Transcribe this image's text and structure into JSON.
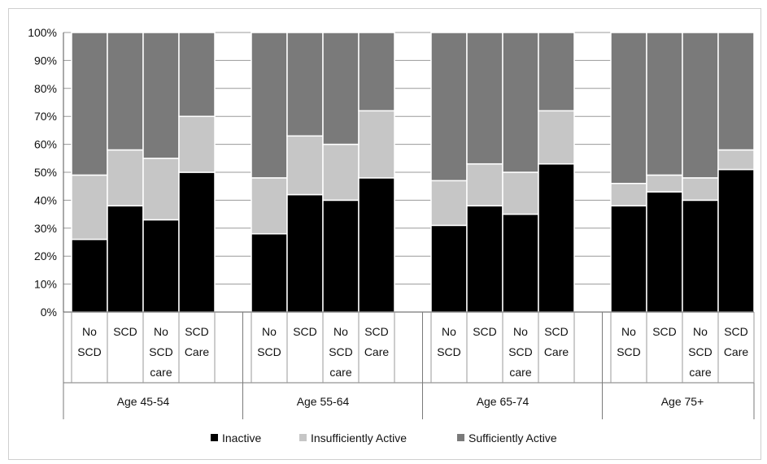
{
  "chart_data": {
    "type": "bar",
    "stacked": true,
    "title": "",
    "xlabel": "",
    "ylabel": "",
    "ylim": [
      0,
      100
    ],
    "y_ticks": [
      "0%",
      "10%",
      "20%",
      "30%",
      "40%",
      "50%",
      "60%",
      "70%",
      "80%",
      "90%",
      "100%"
    ],
    "grid": true,
    "legend_position": "bottom",
    "groups": [
      {
        "label": "Age 45-54",
        "categories": [
          "No SCD",
          "SCD",
          "No SCD care",
          "SCD Care"
        ]
      },
      {
        "label": "Age 55-64",
        "categories": [
          "No SCD",
          "SCD",
          "No SCD care",
          "SCD Care"
        ]
      },
      {
        "label": "Age 65-74",
        "categories": [
          "No SCD",
          "SCD",
          "No SCD care",
          "SCD Care"
        ]
      },
      {
        "label": "Age 75+",
        "categories": [
          "No SCD",
          "SCD",
          "No SCD care",
          "SCD Care"
        ]
      }
    ],
    "category_label_lines": [
      [
        "No",
        "SCD"
      ],
      [
        "SCD"
      ],
      [
        "No",
        "SCD",
        "care"
      ],
      [
        "SCD",
        "Care"
      ]
    ],
    "series": [
      {
        "name": "Inactive",
        "color": "#000000",
        "values": [
          26,
          38,
          33,
          50,
          28,
          42,
          40,
          48,
          31,
          38,
          35,
          53,
          38,
          43,
          40,
          51
        ]
      },
      {
        "name": "Insufficiently Active",
        "color": "#c6c6c6",
        "values": [
          23,
          20,
          22,
          20,
          20,
          21,
          20,
          24,
          16,
          15,
          15,
          19,
          8,
          6,
          8,
          7
        ]
      },
      {
        "name": "Sufficiently Active",
        "color": "#7a7a7a",
        "values": [
          51,
          42,
          45,
          30,
          52,
          37,
          40,
          28,
          53,
          47,
          50,
          28,
          54,
          51,
          52,
          42
        ]
      }
    ]
  }
}
